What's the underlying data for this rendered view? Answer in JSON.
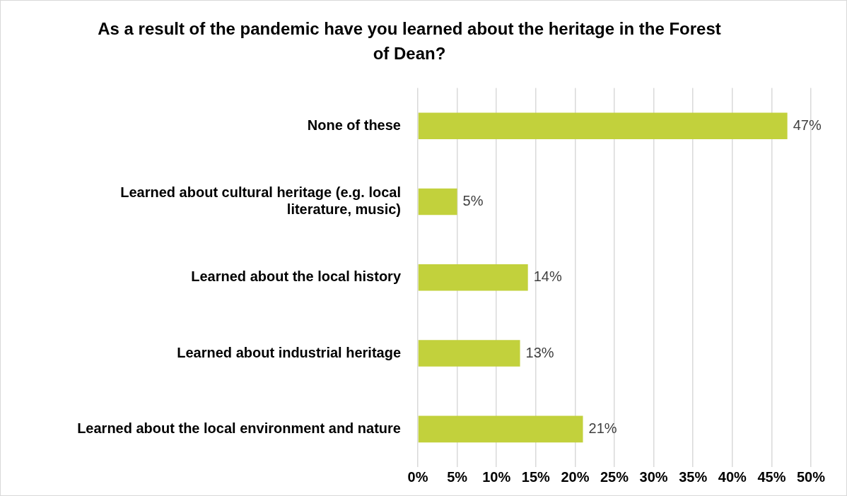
{
  "chart_data": {
    "type": "bar",
    "orientation": "horizontal",
    "title": "As a result of the pandemic have you learned about the heritage in the Forest of Dean?",
    "categories": [
      "None of these",
      "Learned about cultural heritage (e.g. local literature, music)",
      "Learned about the local history",
      "Learned about industrial heritage",
      "Learned about the local environment and nature"
    ],
    "values": [
      47,
      5,
      14,
      13,
      21
    ],
    "value_labels": [
      "47%",
      "5%",
      "14%",
      "13%",
      "21%"
    ],
    "color": "#c2d13c",
    "xlim": [
      0,
      50
    ],
    "xticks": [
      {
        "value": 0,
        "label": "0%"
      },
      {
        "value": 5,
        "label": "5%"
      },
      {
        "value": 10,
        "label": "10%"
      },
      {
        "value": 15,
        "label": "15%"
      },
      {
        "value": 20,
        "label": "20%"
      },
      {
        "value": 25,
        "label": "25%"
      },
      {
        "value": 30,
        "label": "30%"
      },
      {
        "value": 35,
        "label": "35%"
      },
      {
        "value": 40,
        "label": "40%"
      },
      {
        "value": 45,
        "label": "45%"
      },
      {
        "value": 50,
        "label": "50%"
      }
    ],
    "grid": "x",
    "legend": false
  }
}
